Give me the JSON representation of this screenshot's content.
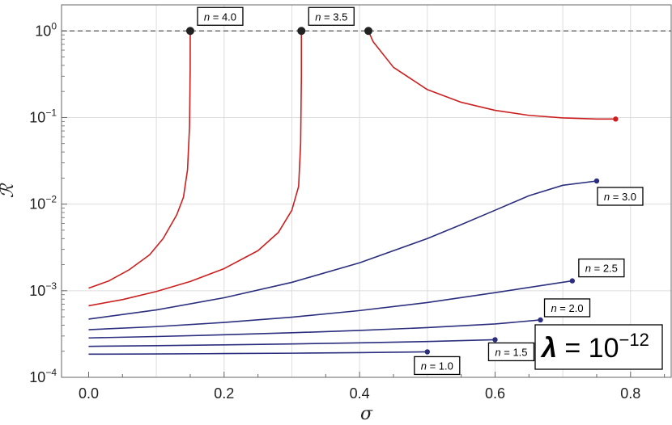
{
  "chart_data": {
    "type": "line",
    "title": "",
    "xlabel": "σ",
    "ylabel": "ℛ",
    "y_scale": "log",
    "xlim": [
      -0.04,
      0.86
    ],
    "ylim": [
      0.0001,
      2.0
    ],
    "grid": true,
    "x_ticks": [
      {
        "value": 0.0,
        "label": "0.0"
      },
      {
        "value": 0.2,
        "label": "0.2"
      },
      {
        "value": 0.4,
        "label": "0.4"
      },
      {
        "value": 0.6,
        "label": "0.6"
      },
      {
        "value": 0.8,
        "label": "0.8"
      }
    ],
    "y_ticks": [
      {
        "value": 1.0,
        "base": "10",
        "exp": "0"
      },
      {
        "value": 0.1,
        "base": "10",
        "exp": "−1"
      },
      {
        "value": 0.01,
        "base": "10",
        "exp": "−2"
      },
      {
        "value": 0.001,
        "base": "10",
        "exp": "−3"
      },
      {
        "value": 0.0001,
        "base": "10",
        "exp": "−4"
      }
    ],
    "reference_line": {
      "y": 1.0,
      "style": "dashed"
    },
    "colors": {
      "red": "#cc1f1f",
      "blue": "#2b2e7e",
      "endpoint_black": "#222222",
      "grid": "#dddddd"
    },
    "annotation": {
      "lhs": "λ",
      "eq": " = 10",
      "exp": "−12"
    },
    "series": [
      {
        "label": "n = 1.0",
        "n_text": "n",
        "value_text": " = 1.0",
        "color": "blue",
        "end_marker": "blue",
        "x": [
          0.0,
          0.1,
          0.2,
          0.3,
          0.4,
          0.5
        ],
        "y": [
          0.000185,
          0.000186,
          0.000188,
          0.00019,
          0.000193,
          0.000197
        ]
      },
      {
        "label": "n = 1.5",
        "n_text": "n",
        "value_text": " = 1.5",
        "color": "blue",
        "end_marker": "blue",
        "x": [
          0.0,
          0.1,
          0.2,
          0.3,
          0.4,
          0.5,
          0.6
        ],
        "y": [
          0.000228,
          0.000232,
          0.000237,
          0.000243,
          0.00025,
          0.000259,
          0.000272
        ]
      },
      {
        "label": "n = 2.0",
        "n_text": "n",
        "value_text": " = 2.0",
        "color": "blue",
        "end_marker": "blue",
        "x": [
          0.0,
          0.1,
          0.2,
          0.3,
          0.4,
          0.5,
          0.6,
          0.667
        ],
        "y": [
          0.000285,
          0.000296,
          0.00031,
          0.000327,
          0.000348,
          0.000375,
          0.000413,
          0.00046
        ]
      },
      {
        "label": "n = 2.5",
        "n_text": "n",
        "value_text": " = 2.5",
        "color": "blue",
        "end_marker": "blue",
        "x": [
          0.0,
          0.1,
          0.2,
          0.3,
          0.4,
          0.5,
          0.6,
          0.714
        ],
        "y": [
          0.000355,
          0.000385,
          0.00043,
          0.000495,
          0.00059,
          0.00073,
          0.00095,
          0.0013
        ]
      },
      {
        "label": "n = 3.0",
        "n_text": "n",
        "value_text": " = 3.0",
        "color": "blue",
        "end_marker": "blue",
        "x": [
          0.0,
          0.1,
          0.2,
          0.3,
          0.4,
          0.5,
          0.55,
          0.6,
          0.65,
          0.7,
          0.75
        ],
        "y": [
          0.00047,
          0.0006,
          0.00083,
          0.00125,
          0.0021,
          0.004,
          0.0058,
          0.0085,
          0.0125,
          0.0165,
          0.0185
        ]
      },
      {
        "label": "",
        "color": "red",
        "end_marker": "black",
        "x": [
          0.0,
          0.05,
          0.1,
          0.15,
          0.2,
          0.25,
          0.28,
          0.3,
          0.31,
          0.313,
          0.3141,
          0.3141
        ],
        "y": [
          0.00067,
          0.00079,
          0.00098,
          0.00128,
          0.0018,
          0.0029,
          0.0047,
          0.0085,
          0.016,
          0.05,
          0.3,
          1.0
        ]
      },
      {
        "label": "",
        "color": "red",
        "end_marker": "black",
        "x": [
          0.0,
          0.03,
          0.06,
          0.09,
          0.11,
          0.13,
          0.14,
          0.146,
          0.149,
          0.1499,
          0.15
        ],
        "y": [
          0.00107,
          0.0013,
          0.00175,
          0.0026,
          0.004,
          0.0075,
          0.012,
          0.025,
          0.08,
          0.35,
          1.0
        ]
      },
      {
        "label": "",
        "color": "red",
        "end_marker": "red",
        "start_marker": "black",
        "x": [
          0.413,
          0.42,
          0.45,
          0.5,
          0.55,
          0.6,
          0.65,
          0.7,
          0.75,
          0.778
        ],
        "y": [
          1.0,
          0.75,
          0.38,
          0.21,
          0.15,
          0.121,
          0.106,
          0.099,
          0.096,
          0.096
        ]
      }
    ],
    "point_labels": [
      {
        "text_n": "n",
        "text_v": " = 4.0",
        "x": 0.15,
        "y": 1.0
      },
      {
        "text_n": "n",
        "text_v": " = 3.5",
        "x": 0.3141,
        "y": 1.0
      }
    ]
  }
}
